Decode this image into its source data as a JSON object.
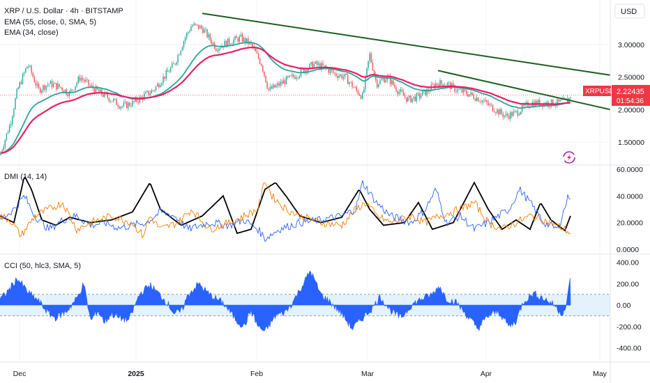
{
  "header": {
    "title": "XRP / U.S. Dollar · 4h · BITSTAMP",
    "ema1": "EMA (55, close, 0, SMA, 5)",
    "ema2": "EMA (34, close)",
    "currency": "USD"
  },
  "price_badge": {
    "symbol": "XRPUSD",
    "price": "2.22435",
    "countdown": "01:54:36"
  },
  "colors": {
    "candle_up": "#26a69a",
    "candle_down": "#ef5350",
    "ema55": "#e91e63",
    "ema34": "#26a69a",
    "trendline": "#1b5e20",
    "adx": "#000000",
    "di_plus": "#2962ff",
    "di_minus": "#f57c00",
    "cci": "#2962ff",
    "cci_band": "#e3f2fd",
    "badge": "#f23645"
  },
  "chart_data": [
    {
      "type": "candlestick",
      "title": "XRP / U.S. Dollar · 4h · BITSTAMP",
      "x_ticks": [
        "Dec",
        "2025",
        "Feb",
        "Mar",
        "Apr",
        "May"
      ],
      "y_ticks": [
        "3.00000",
        "2.50000",
        "2.00000",
        "1.50000"
      ],
      "ylim": [
        1.2,
        3.6
      ],
      "last_price": 2.22435,
      "series": [
        {
          "name": "EMA (55, close, 0, SMA, 5)"
        },
        {
          "name": "EMA (34, close)"
        }
      ],
      "anchors": [
        [
          0,
          1.3
        ],
        [
          15,
          1.8
        ],
        [
          25,
          2.3
        ],
        [
          40,
          2.7
        ],
        [
          55,
          2.3
        ],
        [
          70,
          2.4
        ],
        [
          85,
          2.35
        ],
        [
          100,
          2.25
        ],
        [
          115,
          2.5
        ],
        [
          130,
          2.35
        ],
        [
          145,
          2.25
        ],
        [
          160,
          2.15
        ],
        [
          175,
          2.05
        ],
        [
          190,
          2.1
        ],
        [
          205,
          2.2
        ],
        [
          220,
          2.3
        ],
        [
          235,
          2.5
        ],
        [
          250,
          2.7
        ],
        [
          265,
          3.1
        ],
        [
          275,
          3.3
        ],
        [
          290,
          3.25
        ],
        [
          310,
          2.95
        ],
        [
          330,
          3.05
        ],
        [
          345,
          3.1
        ],
        [
          360,
          3.0
        ],
        [
          375,
          2.7
        ],
        [
          385,
          2.3
        ],
        [
          395,
          2.35
        ],
        [
          410,
          2.45
        ],
        [
          420,
          2.5
        ],
        [
          435,
          2.6
        ],
        [
          450,
          2.7
        ],
        [
          465,
          2.65
        ],
        [
          480,
          2.55
        ],
        [
          495,
          2.5
        ],
        [
          510,
          2.3
        ],
        [
          520,
          2.2
        ],
        [
          530,
          2.85
        ],
        [
          540,
          2.4
        ],
        [
          555,
          2.5
        ],
        [
          570,
          2.3
        ],
        [
          585,
          2.15
        ],
        [
          600,
          2.2
        ],
        [
          615,
          2.3
        ],
        [
          625,
          2.4
        ],
        [
          640,
          2.4
        ],
        [
          655,
          2.3
        ],
        [
          670,
          2.25
        ],
        [
          690,
          2.15
        ],
        [
          710,
          2.0
        ],
        [
          725,
          1.9
        ],
        [
          740,
          1.95
        ],
        [
          760,
          2.1
        ],
        [
          780,
          2.1
        ],
        [
          800,
          2.1
        ],
        [
          815,
          2.15
        ],
        [
          818,
          2.22
        ]
      ],
      "trendlines": [
        {
          "from": [
            290,
            3.48
          ],
          "to": [
            875,
            2.53
          ]
        },
        {
          "from": [
            628,
            2.6
          ],
          "to": [
            875,
            2.0
          ]
        }
      ]
    },
    {
      "type": "line",
      "title": "DMI (14, 14)",
      "y_ticks": [
        "60.0000",
        "40.0000",
        "20.0000",
        "0.0000"
      ],
      "ylim": [
        0,
        60
      ],
      "series": [
        {
          "key": "adx",
          "anchors": [
            [
              0,
              25
            ],
            [
              20,
              20
            ],
            [
              35,
              55
            ],
            [
              45,
              45
            ],
            [
              60,
              22
            ],
            [
              80,
              18
            ],
            [
              100,
              24
            ],
            [
              130,
              20
            ],
            [
              160,
              22
            ],
            [
              190,
              28
            ],
            [
              215,
              50
            ],
            [
              230,
              30
            ],
            [
              260,
              18
            ],
            [
              290,
              25
            ],
            [
              320,
              40
            ],
            [
              340,
              12
            ],
            [
              360,
              15
            ],
            [
              380,
              45
            ],
            [
              395,
              50
            ],
            [
              410,
              40
            ],
            [
              430,
              25
            ],
            [
              460,
              20
            ],
            [
              490,
              24
            ],
            [
              515,
              45
            ],
            [
              530,
              30
            ],
            [
              550,
              18
            ],
            [
              580,
              20
            ],
            [
              600,
              35
            ],
            [
              620,
              15
            ],
            [
              650,
              20
            ],
            [
              680,
              50
            ],
            [
              700,
              30
            ],
            [
              720,
              15
            ],
            [
              740,
              22
            ],
            [
              760,
              15
            ],
            [
              775,
              35
            ],
            [
              790,
              22
            ],
            [
              810,
              14
            ],
            [
              818,
              25
            ]
          ]
        },
        {
          "key": "di_plus",
          "anchors": [
            [
              0,
              22
            ],
            [
              20,
              30
            ],
            [
              35,
              40
            ],
            [
              50,
              25
            ],
            [
              70,
              15
            ],
            [
              90,
              22
            ],
            [
              110,
              25
            ],
            [
              130,
              18
            ],
            [
              150,
              20
            ],
            [
              170,
              16
            ],
            [
              190,
              18
            ],
            [
              210,
              20
            ],
            [
              230,
              28
            ],
            [
              250,
              25
            ],
            [
              270,
              15
            ],
            [
              300,
              20
            ],
            [
              330,
              18
            ],
            [
              350,
              22
            ],
            [
              370,
              15
            ],
            [
              380,
              8
            ],
            [
              400,
              15
            ],
            [
              430,
              20
            ],
            [
              460,
              22
            ],
            [
              490,
              25
            ],
            [
              510,
              30
            ],
            [
              520,
              50
            ],
            [
              540,
              35
            ],
            [
              560,
              25
            ],
            [
              590,
              20
            ],
            [
              610,
              30
            ],
            [
              625,
              45
            ],
            [
              640,
              20
            ],
            [
              660,
              25
            ],
            [
              680,
              15
            ],
            [
              700,
              20
            ],
            [
              730,
              30
            ],
            [
              745,
              45
            ],
            [
              760,
              35
            ],
            [
              780,
              20
            ],
            [
              800,
              15
            ],
            [
              815,
              40
            ]
          ]
        },
        {
          "key": "di_minus",
          "anchors": [
            [
              0,
              25
            ],
            [
              15,
              22
            ],
            [
              30,
              10
            ],
            [
              50,
              25
            ],
            [
              70,
              30
            ],
            [
              90,
              35
            ],
            [
              110,
              15
            ],
            [
              130,
              20
            ],
            [
              160,
              25
            ],
            [
              190,
              20
            ],
            [
              205,
              10
            ],
            [
              215,
              25
            ],
            [
              230,
              15
            ],
            [
              255,
              20
            ],
            [
              275,
              30
            ],
            [
              300,
              15
            ],
            [
              330,
              20
            ],
            [
              350,
              25
            ],
            [
              370,
              30
            ],
            [
              380,
              52
            ],
            [
              390,
              40
            ],
            [
              410,
              30
            ],
            [
              430,
              25
            ],
            [
              460,
              20
            ],
            [
              490,
              18
            ],
            [
              510,
              30
            ],
            [
              525,
              35
            ],
            [
              540,
              25
            ],
            [
              560,
              20
            ],
            [
              590,
              25
            ],
            [
              610,
              20
            ],
            [
              630,
              25
            ],
            [
              660,
              30
            ],
            [
              680,
              35
            ],
            [
              700,
              20
            ],
            [
              720,
              15
            ],
            [
              740,
              20
            ],
            [
              760,
              25
            ],
            [
              790,
              20
            ],
            [
              810,
              15
            ],
            [
              818,
              12
            ]
          ]
        }
      ]
    },
    {
      "type": "area",
      "title": "CCI (50, hlc3, SMA, 5)",
      "y_ticks": [
        "400.00",
        "200.00",
        "0.00",
        "-200.00",
        "-400.00"
      ],
      "ylim": [
        -500,
        430
      ],
      "band": [
        -100,
        100
      ],
      "anchors": [
        [
          0,
          50
        ],
        [
          10,
          120
        ],
        [
          25,
          250
        ],
        [
          40,
          120
        ],
        [
          55,
          40
        ],
        [
          70,
          -80
        ],
        [
          80,
          -120
        ],
        [
          95,
          -60
        ],
        [
          110,
          60
        ],
        [
          120,
          200
        ],
        [
          130,
          -150
        ],
        [
          140,
          -50
        ],
        [
          150,
          -160
        ],
        [
          160,
          -80
        ],
        [
          170,
          -120
        ],
        [
          185,
          -140
        ],
        [
          200,
          100
        ],
        [
          215,
          190
        ],
        [
          230,
          90
        ],
        [
          240,
          20
        ],
        [
          250,
          -80
        ],
        [
          260,
          -60
        ],
        [
          270,
          100
        ],
        [
          285,
          200
        ],
        [
          300,
          100
        ],
        [
          320,
          20
        ],
        [
          340,
          -150
        ],
        [
          350,
          -200
        ],
        [
          360,
          -50
        ],
        [
          370,
          -200
        ],
        [
          380,
          -250
        ],
        [
          395,
          -100
        ],
        [
          410,
          -60
        ],
        [
          420,
          30
        ],
        [
          435,
          200
        ],
        [
          445,
          320
        ],
        [
          460,
          100
        ],
        [
          475,
          20
        ],
        [
          490,
          -80
        ],
        [
          505,
          -220
        ],
        [
          520,
          -120
        ],
        [
          535,
          -20
        ],
        [
          545,
          80
        ],
        [
          560,
          -50
        ],
        [
          575,
          -120
        ],
        [
          590,
          0
        ],
        [
          605,
          60
        ],
        [
          620,
          100
        ],
        [
          630,
          180
        ],
        [
          640,
          60
        ],
        [
          655,
          20
        ],
        [
          670,
          -100
        ],
        [
          685,
          -220
        ],
        [
          700,
          -100
        ],
        [
          715,
          -60
        ],
        [
          730,
          -200
        ],
        [
          740,
          -150
        ],
        [
          750,
          30
        ],
        [
          765,
          110
        ],
        [
          780,
          60
        ],
        [
          795,
          0
        ],
        [
          805,
          -80
        ],
        [
          812,
          -20
        ],
        [
          818,
          280
        ]
      ]
    }
  ]
}
